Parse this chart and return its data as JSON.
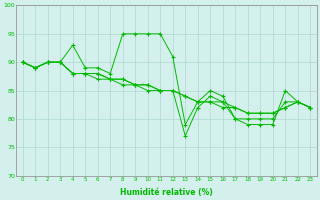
{
  "title": "",
  "xlabel": "Humidité relative (%)",
  "ylabel": "",
  "xlim": [
    -0.5,
    23.5
  ],
  "ylim": [
    70,
    100
  ],
  "yticks": [
    70,
    75,
    80,
    85,
    90,
    95,
    100
  ],
  "xticks": [
    0,
    1,
    2,
    3,
    4,
    5,
    6,
    7,
    8,
    9,
    10,
    11,
    12,
    13,
    14,
    15,
    16,
    17,
    18,
    19,
    20,
    21,
    22,
    23
  ],
  "line_color": "#00bb00",
  "bg_color": "#d4f0ec",
  "grid_color": "#b0d8d0",
  "series": [
    [
      90,
      89,
      90,
      90,
      93,
      89,
      89,
      88,
      95,
      95,
      95,
      95,
      91,
      79,
      83,
      85,
      84,
      80,
      79,
      79,
      79,
      85,
      83,
      82
    ],
    [
      90,
      89,
      90,
      90,
      88,
      88,
      88,
      87,
      87,
      86,
      86,
      85,
      85,
      77,
      82,
      84,
      83,
      80,
      80,
      80,
      80,
      83,
      83,
      82
    ],
    [
      90,
      89,
      90,
      90,
      88,
      88,
      88,
      87,
      87,
      86,
      86,
      85,
      85,
      84,
      83,
      83,
      82,
      82,
      81,
      81,
      81,
      82,
      83,
      82
    ],
    [
      90,
      89,
      90,
      90,
      88,
      88,
      87,
      87,
      86,
      86,
      85,
      85,
      85,
      84,
      83,
      83,
      83,
      82,
      81,
      81,
      81,
      82,
      83,
      82
    ]
  ]
}
